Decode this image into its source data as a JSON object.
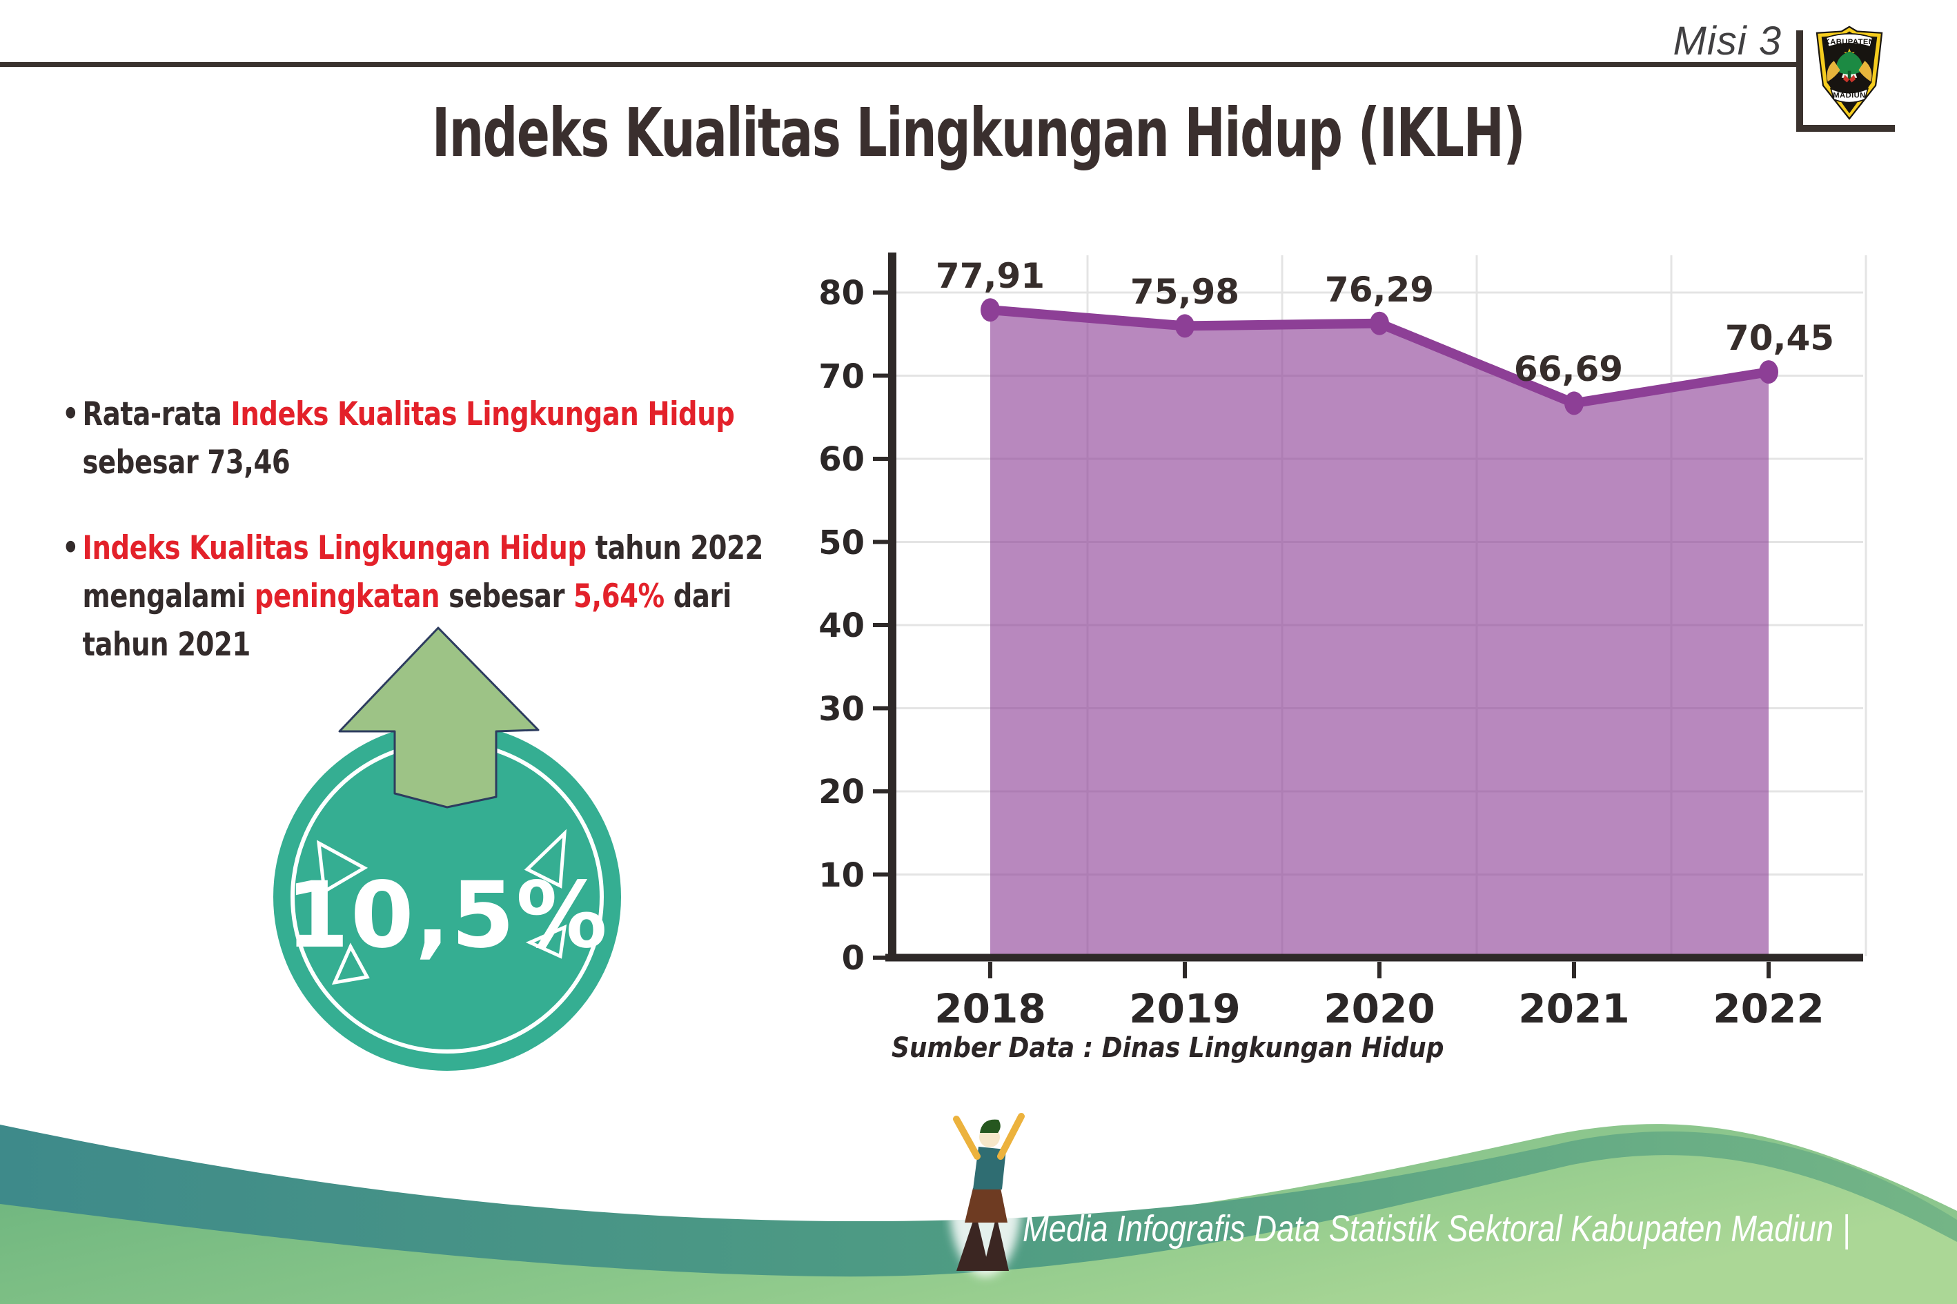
{
  "header": {
    "misi_label": "Misi 3",
    "title": "Indeks Kualitas Lingkungan Hidup (IKLH)",
    "logo_top_text": "KABUPATEN",
    "logo_bottom_text": "MADIUN"
  },
  "bullets": {
    "bullet_char": "•",
    "items": [
      {
        "lines": [
          [
            {
              "t": "Rata-rata ",
              "em": false
            },
            {
              "t": "Indeks Kualitas Lingkungan Hidup",
              "em": true
            }
          ],
          [
            {
              "t": "sebesar 73,46",
              "em": false
            }
          ]
        ]
      },
      {
        "lines": [
          [
            {
              "t": "Indeks Kualitas Lingkungan Hidup",
              "em": true
            },
            {
              "t": " tahun 2022",
              "em": false
            }
          ],
          [
            {
              "t": "mengalami ",
              "em": false
            },
            {
              "t": "peningkatan",
              "em": true
            },
            {
              "t": " sebesar ",
              "em": false
            },
            {
              "t": "5,64%",
              "em": true
            },
            {
              "t": " dari",
              "em": false
            }
          ],
          [
            {
              "t": "tahun 2021",
              "em": false
            }
          ]
        ]
      }
    ]
  },
  "badge": {
    "value": "10,5%"
  },
  "chart_data": {
    "type": "area",
    "categories": [
      "2018",
      "2019",
      "2020",
      "2021",
      "2022"
    ],
    "values": [
      77.91,
      75.98,
      76.29,
      66.69,
      70.45
    ],
    "value_labels": [
      "77,91",
      "75,98",
      "76,29",
      "66,69",
      "70,45"
    ],
    "title": "",
    "xlabel": "",
    "ylabel": "",
    "ylim": [
      0,
      83
    ],
    "yticks": [
      0,
      10,
      20,
      30,
      40,
      50,
      60,
      70,
      80
    ],
    "grid": true,
    "legend": "none",
    "line_color": "#8D3F96",
    "fill_color": "rgba(141,63,150,0.62)"
  },
  "source_note": "Sumber Data : Dinas Lingkungan Hidup",
  "footer": {
    "caption": "Media Infografis Data Statistik Sektoral Kabupaten Madiun |"
  },
  "colors": {
    "dark_text": "#362D2B",
    "accent_red": "#E3212A",
    "badge_teal": "#35AE92",
    "arrow_green": "#9DC386",
    "arrow_outline": "#2D3C5F",
    "grid": "#E4E4E4",
    "axis": "#2E2928",
    "wave_teal": "#3E8A8A",
    "wave_green": "#A6D494"
  }
}
